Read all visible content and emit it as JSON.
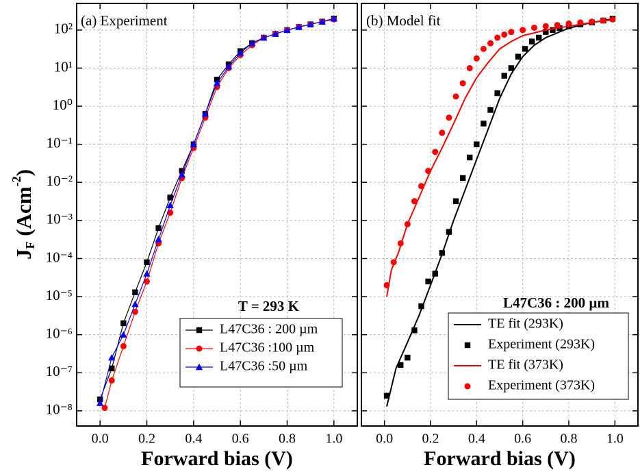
{
  "chart_data": [
    {
      "type": "line",
      "log_y": true,
      "grid": true,
      "legend": "lower right",
      "annotations": [
        "(a) Experiment",
        "T = 293 K"
      ],
      "x_label": "Forward bias (V)",
      "y_label": [
        "J",
        "F",
        " (Acm",
        "-2",
        ")"
      ],
      "xlim": [
        -0.1,
        1.1
      ],
      "ylim": [
        4e-09,
        500
      ],
      "xticks": [
        {
          "value": 0,
          "label": "0.0"
        },
        {
          "value": 0.2,
          "label": "0.2"
        },
        {
          "value": 0.4,
          "label": "0.4"
        },
        {
          "value": 0.6,
          "label": "0.6"
        },
        {
          "value": 0.8,
          "label": "0.8"
        },
        {
          "value": 1,
          "label": "1.0"
        }
      ],
      "yticks": [
        {
          "value": 1e-08,
          "label": "10⁻⁸"
        },
        {
          "value": 1e-07,
          "label": "10⁻⁷"
        },
        {
          "value": 1e-06,
          "label": "10⁻⁶"
        },
        {
          "value": 1e-05,
          "label": "10⁻⁵"
        },
        {
          "value": 0.0001,
          "label": "10⁻⁴"
        },
        {
          "value": 0.001,
          "label": "10⁻³"
        },
        {
          "value": 0.01,
          "label": "10⁻²"
        },
        {
          "value": 0.1,
          "label": "10⁻¹"
        },
        {
          "value": 1,
          "label": "10⁰"
        },
        {
          "value": 10,
          "label": "10¹"
        },
        {
          "value": 100,
          "label": "10²"
        }
      ],
      "series": [
        {
          "name": "L47C36 : 200 µm",
          "color": "#000000",
          "marker": "square",
          "mode": "line+markers",
          "x": [
            0,
            0.05,
            0.1,
            0.15,
            0.2,
            0.25,
            0.3,
            0.35,
            0.4,
            0.45,
            0.5,
            0.55,
            0.6,
            0.65,
            0.7,
            0.75,
            0.8,
            0.85,
            0.9,
            0.95,
            1
          ],
          "values": [
            2e-08,
            1.3e-07,
            2e-06,
            1.3e-05,
            8e-05,
            0.00063,
            0.004,
            0.02,
            0.1,
            0.63,
            5,
            12.6,
            28,
            45,
            63,
            79,
            100,
            120,
            141,
            166,
            200
          ]
        },
        {
          "name": "L47C36 :100 µm",
          "color": "#ff0000",
          "marker": "circle",
          "mode": "line+markers",
          "x": [
            0.02,
            0.05,
            0.1,
            0.15,
            0.2,
            0.25,
            0.3,
            0.35,
            0.4,
            0.45,
            0.5,
            0.55,
            0.6,
            0.65,
            0.7,
            0.75,
            0.8,
            0.85,
            0.9,
            0.95,
            1
          ],
          "values": [
            1.2e-08,
            6.3e-08,
            5e-07,
            4e-06,
            2.5e-05,
            0.00025,
            0.0016,
            0.013,
            0.08,
            0.5,
            3.2,
            10,
            22,
            40,
            63,
            79,
            100,
            120,
            141,
            166,
            190
          ]
        },
        {
          "name": "L47C36 :50 µm",
          "color": "#0000ff",
          "marker": "triangle",
          "mode": "line+markers",
          "x": [
            0,
            0.05,
            0.1,
            0.15,
            0.2,
            0.25,
            0.3,
            0.35,
            0.4,
            0.45,
            0.5,
            0.55,
            0.6,
            0.65,
            0.7,
            0.75,
            0.8,
            0.85,
            0.9,
            0.95,
            1
          ],
          "values": [
            1.6e-08,
            2.5e-07,
            1e-06,
            6.3e-06,
            4e-05,
            0.00032,
            0.0025,
            0.016,
            0.1,
            0.63,
            4,
            11,
            25,
            45,
            63,
            79,
            100,
            120,
            141,
            166,
            200
          ]
        }
      ]
    },
    {
      "type": "line",
      "log_y": true,
      "grid": true,
      "legend": "lower right",
      "ytick_labels": false,
      "annotations": [
        "(b) Model fit",
        "L47C36 : 200 µm"
      ],
      "x_label": "Forward bias (V)",
      "xlim": [
        -0.1,
        1.1
      ],
      "ylim": [
        4e-09,
        500
      ],
      "xticks": [
        {
          "value": 0,
          "label": "0.0"
        },
        {
          "value": 0.2,
          "label": "0.2"
        },
        {
          "value": 0.4,
          "label": "0.4"
        },
        {
          "value": 0.6,
          "label": "0.6"
        },
        {
          "value": 0.8,
          "label": "0.8"
        },
        {
          "value": 1,
          "label": "1.0"
        }
      ],
      "yticks": [
        1e-08,
        1e-07,
        1e-06,
        1e-05,
        0.0001,
        0.001,
        0.01,
        0.1,
        1,
        10,
        100
      ],
      "series": [
        {
          "name": "TE fit (293K)",
          "color": "#000000",
          "mode": "line",
          "x": [
            0.01,
            0.05,
            0.1,
            0.15,
            0.2,
            0.25,
            0.3,
            0.35,
            0.4,
            0.45,
            0.5,
            0.55,
            0.6,
            0.65,
            0.7,
            0.8,
            0.9,
            1
          ],
          "values": [
            1.3e-08,
            1.3e-07,
            6.3e-07,
            3.2e-06,
            2e-05,
            0.00013,
            0.001,
            0.0063,
            0.04,
            0.25,
            1.6,
            7,
            20,
            40,
            63,
            112,
            158,
            200
          ]
        },
        {
          "name": "Experiment (293K)",
          "color": "#000000",
          "marker": "square",
          "mode": "markers",
          "x": [
            0.01,
            0.07,
            0.1,
            0.13,
            0.16,
            0.19,
            0.22,
            0.25,
            0.28,
            0.31,
            0.34,
            0.37,
            0.4,
            0.43,
            0.46,
            0.49,
            0.52,
            0.55,
            0.58,
            0.61,
            0.64,
            0.67,
            0.7,
            0.73,
            0.76,
            0.8,
            0.85,
            0.9,
            0.95,
            0.99
          ],
          "values": [
            2.5e-08,
            1.6e-07,
            2.5e-07,
            1.3e-06,
            5.6e-06,
            2.5e-05,
            4e-05,
            0.00014,
            0.0005,
            0.0032,
            0.013,
            0.045,
            0.1,
            0.35,
            0.8,
            2.2,
            6.3,
            10,
            20,
            32,
            50,
            63,
            89,
            100,
            112,
            126,
            141,
            158,
            178,
            200
          ]
        },
        {
          "name": "TE fit (373K)",
          "color": "#ff0000",
          "mode": "line",
          "x": [
            0.01,
            0.03,
            0.06,
            0.1,
            0.15,
            0.2,
            0.25,
            0.3,
            0.35,
            0.4,
            0.45,
            0.5,
            0.55,
            0.6,
            0.7,
            0.8,
            0.9,
            1
          ],
          "values": [
            1e-05,
            5e-05,
            0.00014,
            0.0008,
            0.004,
            0.02,
            0.08,
            0.35,
            1.6,
            5.6,
            14,
            32,
            50,
            71,
            100,
            126,
            158,
            190
          ]
        },
        {
          "name": "Experiment (373K)",
          "color": "#ff0000",
          "marker": "circle",
          "mode": "markers",
          "x": [
            0.01,
            0.04,
            0.07,
            0.1,
            0.13,
            0.16,
            0.19,
            0.22,
            0.25,
            0.28,
            0.31,
            0.34,
            0.37,
            0.4,
            0.43,
            0.46,
            0.49,
            0.52,
            0.55,
            0.6,
            0.65,
            0.7,
            0.75,
            0.8,
            0.85,
            0.9,
            0.95,
            0.99
          ],
          "values": [
            2e-05,
            8e-05,
            0.00025,
            0.0008,
            0.0032,
            0.008,
            0.02,
            0.063,
            0.2,
            0.5,
            1.8,
            4,
            10,
            18,
            32,
            45,
            63,
            76,
            89,
            100,
            115,
            126,
            135,
            148,
            158,
            166,
            178,
            190
          ]
        }
      ]
    }
  ]
}
